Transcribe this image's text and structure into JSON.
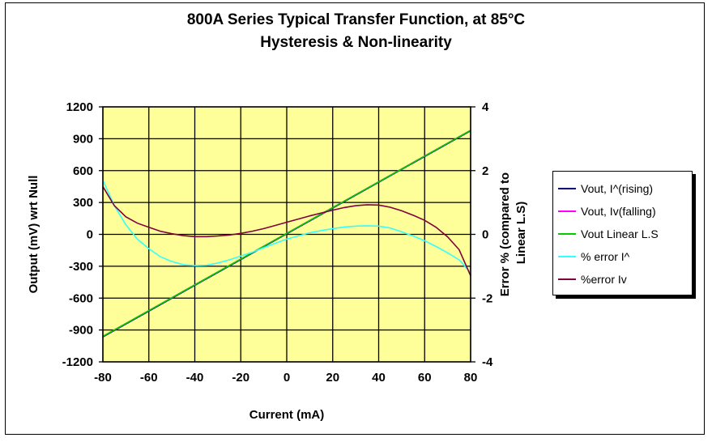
{
  "chart_data": {
    "type": "line",
    "title": "800A Series Typical Transfer Function, at 85°C",
    "subtitle": "Hysteresis & Non-linearity",
    "xlabel": "Current (mA)",
    "ylabel_left": "Output (mV) wrt Null",
    "ylabel_right": "Error % (compared to Linear L.S)",
    "xlim": [
      -80,
      80
    ],
    "ylim_left": [
      -1200,
      1200
    ],
    "ylim_right": [
      -4,
      4
    ],
    "x_ticks": [
      "-80",
      "-60",
      "-40",
      "-20",
      "0",
      "20",
      "40",
      "60",
      "80"
    ],
    "y_left_ticks": [
      "1200",
      "900",
      "600",
      "300",
      "0",
      "-300",
      "-600",
      "-900",
      "-1200"
    ],
    "y_right_ticks": [
      "4",
      "2",
      "0",
      "-2",
      "-4"
    ],
    "grid": true,
    "plot_background": "#ffff99",
    "legend_position": "right",
    "series": [
      {
        "name": "Vout, I^(rising)",
        "axis": "left",
        "color": "#000080",
        "x": [
          -80,
          80
        ],
        "y": [
          -965,
          975
        ]
      },
      {
        "name": "Vout, Iv(falling)",
        "axis": "left",
        "color": "#ff00ff",
        "x": [
          -80,
          80
        ],
        "y": [
          -960,
          980
        ]
      },
      {
        "name": "Vout Linear L.S",
        "axis": "left",
        "color": "#00cc00",
        "x": [
          -80,
          80
        ],
        "y": [
          -960,
          978
        ]
      },
      {
        "name": "% error I^",
        "axis": "right",
        "color": "#33ffff",
        "x": [
          -80,
          -75,
          -70,
          -65,
          -60,
          -55,
          -50,
          -45,
          -40,
          -35,
          -30,
          -25,
          -20,
          -15,
          -10,
          -5,
          0,
          5,
          10,
          15,
          20,
          25,
          30,
          35,
          40,
          45,
          50,
          55,
          60,
          65,
          70,
          75,
          80
        ],
        "y": [
          1.7,
          0.9,
          0.3,
          -0.15,
          -0.45,
          -0.7,
          -0.85,
          -0.95,
          -0.98,
          -0.97,
          -0.9,
          -0.8,
          -0.68,
          -0.56,
          -0.42,
          -0.28,
          -0.15,
          -0.05,
          0.05,
          0.12,
          0.18,
          0.23,
          0.26,
          0.27,
          0.26,
          0.2,
          0.08,
          -0.05,
          -0.2,
          -0.38,
          -0.58,
          -0.8,
          -1.2
        ]
      },
      {
        "name": "%error Iv",
        "axis": "right",
        "color": "#800040",
        "x": [
          -80,
          -75,
          -70,
          -65,
          -60,
          -55,
          -50,
          -45,
          -40,
          -35,
          -30,
          -25,
          -20,
          -15,
          -10,
          -5,
          0,
          5,
          10,
          15,
          20,
          25,
          30,
          35,
          40,
          45,
          50,
          55,
          60,
          65,
          70,
          75,
          80
        ],
        "y": [
          1.5,
          0.9,
          0.55,
          0.35,
          0.22,
          0.1,
          0.02,
          -0.04,
          -0.07,
          -0.07,
          -0.05,
          -0.02,
          0.03,
          0.1,
          0.18,
          0.28,
          0.38,
          0.48,
          0.58,
          0.67,
          0.76,
          0.84,
          0.9,
          0.93,
          0.92,
          0.85,
          0.74,
          0.6,
          0.44,
          0.22,
          -0.08,
          -0.48,
          -1.3
        ]
      }
    ]
  }
}
